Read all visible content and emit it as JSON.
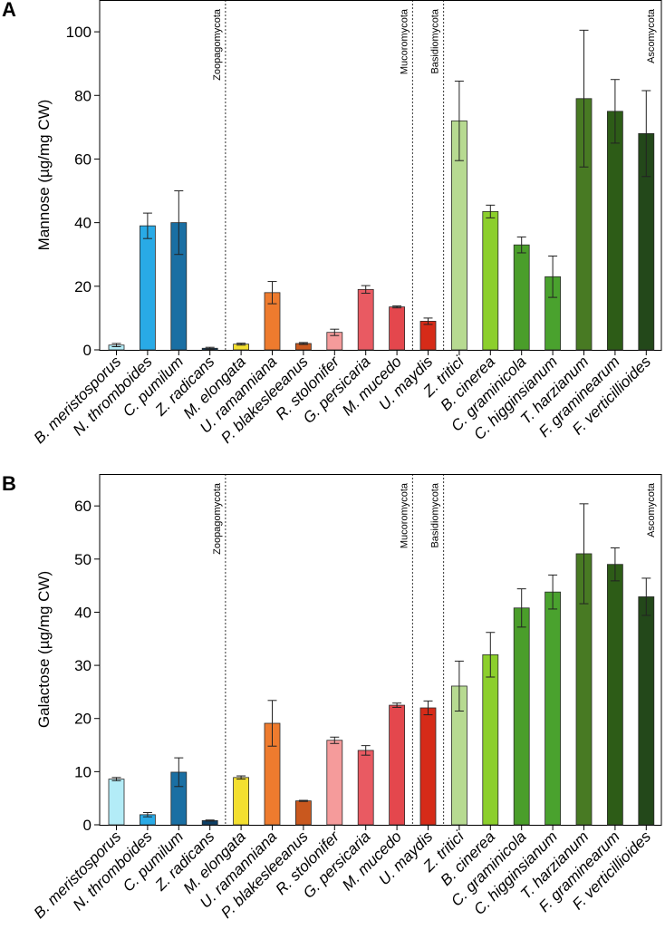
{
  "chart_data": [
    {
      "panel_label": "A",
      "type": "bar",
      "ylabel": "Mannose (µg/mg CW)",
      "ylim": [
        0,
        110
      ],
      "yticks": [
        0,
        20,
        40,
        60,
        80,
        100
      ],
      "categories": [
        "B. meristosporus",
        "N. thromboides",
        "C. pumilum",
        "Z. radicans",
        "M. elongata",
        "U. ramanniana",
        "P. blakesleeanus",
        "R. stolonifer",
        "G. persicaria",
        "M. mucedo",
        "U. maydis",
        "Z. tritici",
        "B. cinerea",
        "C. graminicola",
        "C. higginsianum",
        "T. harzianum",
        "F. graminearum",
        "F. verticillioides"
      ],
      "values": [
        1.5,
        39,
        40,
        0.5,
        1.8,
        18,
        2,
        5.5,
        19,
        13.5,
        9,
        72,
        43.5,
        33,
        23,
        79,
        75,
        68
      ],
      "errors": [
        0.5,
        4,
        10,
        0.3,
        0.3,
        3.5,
        0.3,
        1,
        1.2,
        0.3,
        1,
        12.5,
        2,
        2.5,
        6.5,
        21.5,
        10,
        13.5
      ],
      "divisions": [
        {
          "name": "Zoopagomycota",
          "after_index": 4
        },
        {
          "name": "Mucoromycota",
          "after_index": 10
        },
        {
          "name": "Basidiomycota",
          "after_index": 11
        },
        {
          "name": "Ascomycota",
          "after_index": 18
        }
      ]
    },
    {
      "panel_label": "B",
      "type": "bar",
      "ylabel": "Galactose (µg/mg CW)",
      "ylim": [
        0,
        66
      ],
      "yticks": [
        0,
        10,
        20,
        30,
        40,
        50,
        60
      ],
      "categories": [
        "B. meristosporus",
        "N. thromboides",
        "C. pumilum",
        "Z. radicans",
        "M. elongata",
        "U. ramanniana",
        "P. blakesleeanus",
        "R. stolonifer",
        "G. persicaria",
        "M. mucedo",
        "U. maydis",
        "Z. tritici",
        "B. cinerea",
        "C. graminicola",
        "C. higginsianum",
        "T. harzianum",
        "F. graminearum",
        "F. verticillioides"
      ],
      "values": [
        8.6,
        1.9,
        9.9,
        0.8,
        8.9,
        19.1,
        4.5,
        15.9,
        14,
        22.5,
        22,
        26.1,
        32,
        40.8,
        43.8,
        51,
        49,
        42.9
      ],
      "errors": [
        0.3,
        0.4,
        2.7,
        0.1,
        0.3,
        4.3,
        0.1,
        0.6,
        0.9,
        0.4,
        1.3,
        4.7,
        4.2,
        3.6,
        3.2,
        9.4,
        3.1,
        3.5
      ],
      "divisions": [
        {
          "name": "Zoopagomycota",
          "after_index": 4
        },
        {
          "name": "Mucoromycota",
          "after_index": 10
        },
        {
          "name": "Basidiomycota",
          "after_index": 11
        },
        {
          "name": "Ascomycota",
          "after_index": 18
        }
      ]
    }
  ],
  "colors": [
    "#b3ecf7",
    "#29aae6",
    "#1a6fa3",
    "#0d3f66",
    "#f3df30",
    "#ee7b2e",
    "#c9581e",
    "#f59b9b",
    "#e95a62",
    "#e4474d",
    "#d62b18",
    "#b7da91",
    "#8ccf2c",
    "#4a9e2a",
    "#4aa22e",
    "#487a23",
    "#2d5c17",
    "#23481a"
  ]
}
